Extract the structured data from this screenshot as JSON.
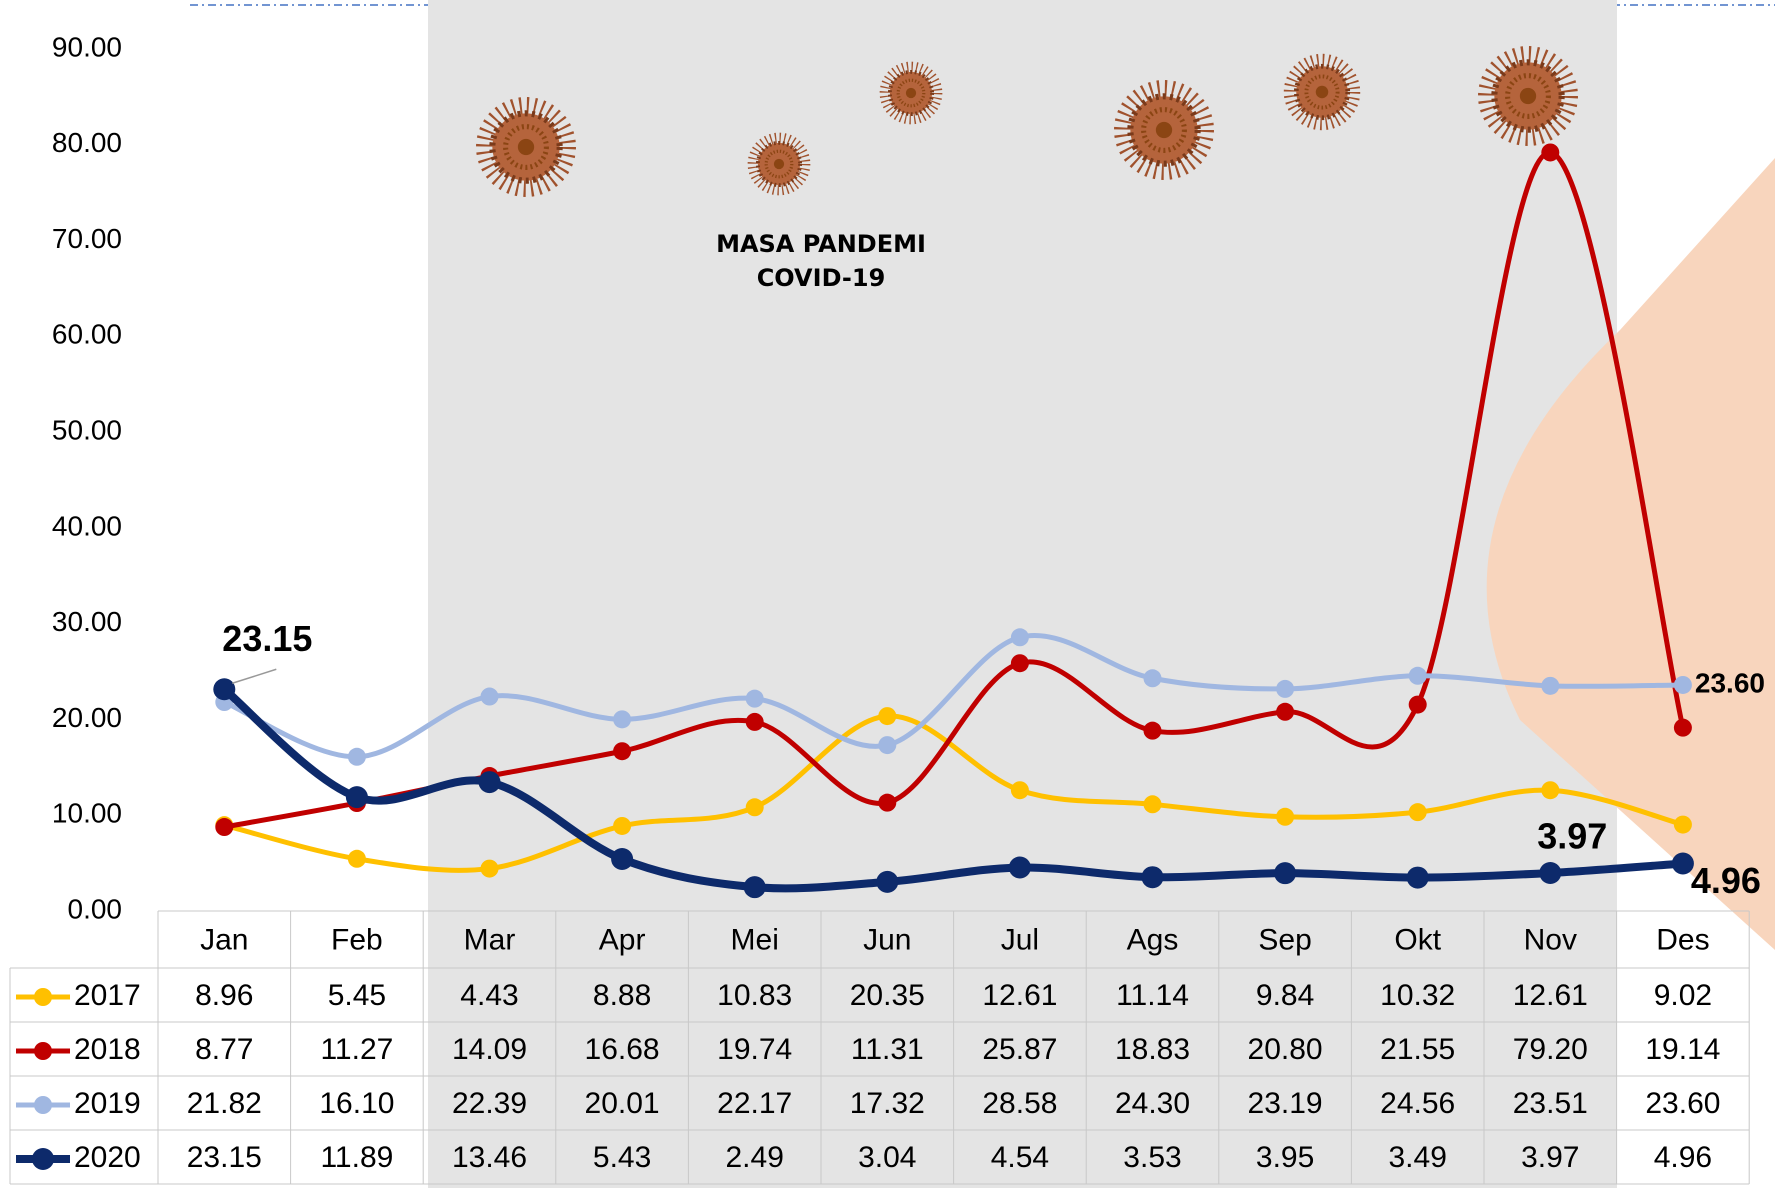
{
  "chart_data": {
    "type": "line",
    "categories": [
      "Jan",
      "Feb",
      "Mar",
      "Apr",
      "Mei",
      "Jun",
      "Jul",
      "Ags",
      "Sep",
      "Okt",
      "Nov",
      "Des"
    ],
    "series": [
      {
        "name": "2017",
        "color": "#ffc000",
        "values": [
          8.96,
          5.45,
          4.43,
          8.88,
          10.83,
          20.35,
          12.61,
          11.14,
          9.84,
          10.32,
          12.61,
          9.02
        ],
        "value_labels": [
          "8.96",
          "5.45",
          "4.43",
          "8.88",
          "10.83",
          "20.35",
          "12.61",
          "11.14",
          "9.84",
          "10.32",
          "12.61",
          "9.02"
        ]
      },
      {
        "name": "2018",
        "color": "#c00000",
        "values": [
          8.77,
          11.27,
          14.09,
          16.68,
          19.74,
          11.31,
          25.87,
          18.83,
          20.8,
          21.55,
          79.2,
          19.14
        ],
        "value_labels": [
          "8.77",
          "11.27",
          "14.09",
          "16.68",
          "19.74",
          "11.31",
          "25.87",
          "18.83",
          "20.80",
          "21.55",
          "79.20",
          "19.14"
        ]
      },
      {
        "name": "2019",
        "color": "#a0b7e1",
        "values": [
          21.82,
          16.1,
          22.39,
          20.01,
          22.17,
          17.32,
          28.58,
          24.3,
          23.19,
          24.56,
          23.51,
          23.6
        ],
        "value_labels": [
          "21.82",
          "16.10",
          "22.39",
          "20.01",
          "22.17",
          "17.32",
          "28.58",
          "24.30",
          "23.19",
          "24.56",
          "23.51",
          "23.60"
        ]
      },
      {
        "name": "2020",
        "color": "#0d2a6b",
        "values": [
          23.15,
          11.89,
          13.46,
          5.43,
          2.49,
          3.04,
          4.54,
          3.53,
          3.95,
          3.49,
          3.97,
          4.96
        ],
        "value_labels": [
          "23.15",
          "11.89",
          "13.46",
          "5.43",
          "2.49",
          "3.04",
          "4.54",
          "3.53",
          "3.95",
          "3.49",
          "3.97",
          "4.96"
        ]
      }
    ],
    "ylim": [
      0,
      90
    ],
    "yticks": [
      {
        "value": 0,
        "label": "0.00"
      },
      {
        "value": 10,
        "label": "10.00"
      },
      {
        "value": 20,
        "label": "20.00"
      },
      {
        "value": 30,
        "label": "30.00"
      },
      {
        "value": 40,
        "label": "40.00"
      },
      {
        "value": 50,
        "label": "50.00"
      },
      {
        "value": 60,
        "label": "60.00"
      },
      {
        "value": 70,
        "label": "70.00"
      },
      {
        "value": 80,
        "label": "80.00"
      },
      {
        "value": 90,
        "label": "90.00"
      }
    ],
    "annotation": [
      "MASA PANDEMI",
      "COVID-19"
    ]
  }
}
